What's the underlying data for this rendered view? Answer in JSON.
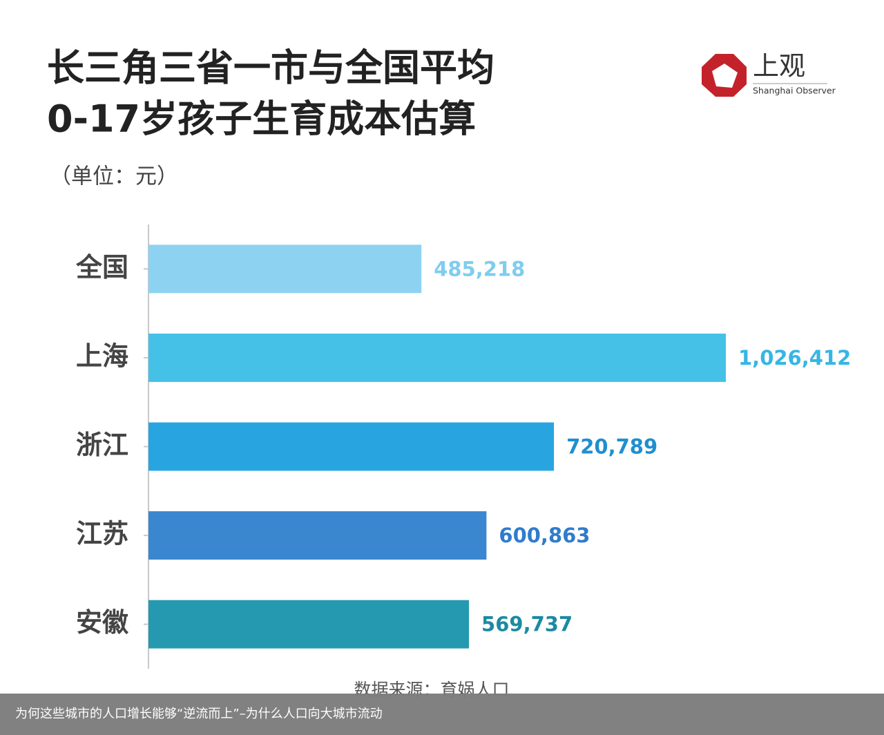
{
  "chart_data": {
    "type": "hbar",
    "title": [
      "长三角三省一市与全国平均",
      "0-17岁孩子生育成本估算"
    ],
    "subtitle": "（单位：元）",
    "categories": [
      "全国",
      "上海",
      "浙江",
      "江苏",
      "安徽"
    ],
    "values": [
      485218,
      1026412,
      720789,
      600863,
      569737
    ],
    "value_labels": [
      "485,218",
      "1,026,412",
      "720,789",
      "600,863",
      "569,737"
    ],
    "colors": [
      "#8dd3f1",
      "#45c1e8",
      "#28a5e0",
      "#3a87cf",
      "#2599b0"
    ],
    "label_colors": [
      "#7fcdee",
      "#36b6e4",
      "#1f8fd0",
      "#2f7ccc",
      "#1b8aa2"
    ],
    "source": "数据来源：育娲人口"
  },
  "logo": {
    "name": "上观",
    "name_en": "Shanghai Observer"
  },
  "caption": "为何这些城市的人口增长能够“逆流而上”–为什么人口向大城市流动"
}
